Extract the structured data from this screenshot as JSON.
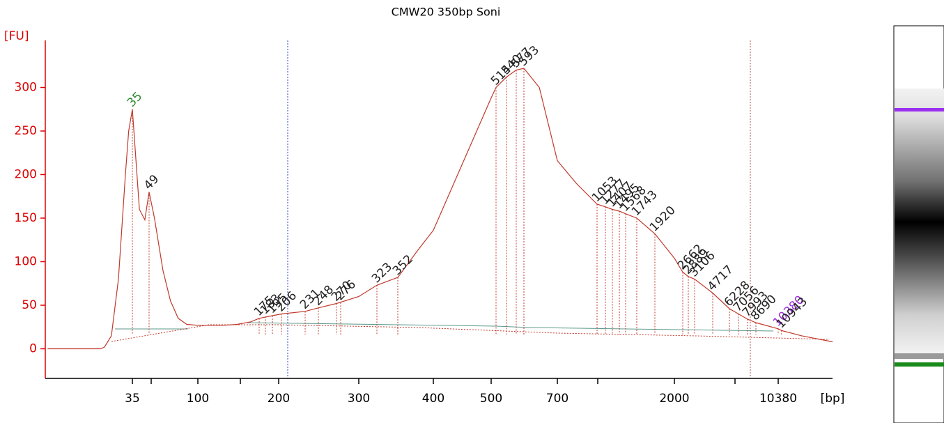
{
  "chart_data": {
    "type": "line",
    "title": "CMW20 350bp Soni",
    "y_label": "[FU]",
    "x_label": "[bp]",
    "color": "#c0392b",
    "xscale": "log",
    "ylim": [
      -34,
      354
    ],
    "yticks": [
      0,
      50,
      100,
      150,
      200,
      250,
      300
    ],
    "xticks": [
      35,
      null,
      100,
      null,
      200,
      300,
      400,
      500,
      700,
      null,
      2000,
      null,
      10380
    ],
    "x": [
      9,
      21,
      22.4,
      25,
      28,
      31.3,
      33,
      35,
      40.3,
      45,
      49,
      53,
      60,
      67,
      75,
      85,
      100,
      111,
      126,
      143,
      162,
      175,
      195,
      206,
      231,
      248,
      270,
      300,
      323,
      352,
      380,
      400,
      500,
      514,
      540,
      577,
      593,
      640,
      700,
      850,
      1053,
      1277,
      1407,
      1495,
      1568,
      1743,
      1920,
      2000,
      2662,
      2889,
      3106,
      4717,
      6228,
      7056,
      7993,
      8690,
      10380,
      10943,
      15000,
      24600
    ],
    "values": [
      0,
      0,
      2,
      15,
      80,
      200,
      250,
      275,
      160,
      148,
      180,
      150,
      90,
      55,
      35,
      28,
      27,
      27,
      27,
      28,
      31,
      35,
      38,
      40,
      43,
      47,
      52,
      60,
      73,
      82,
      115,
      136,
      288,
      300,
      312,
      320,
      322,
      300,
      216,
      190,
      166,
      163,
      160,
      158,
      155,
      150,
      132,
      104,
      88,
      83,
      80,
      64,
      46,
      40,
      34,
      30,
      23,
      21,
      15,
      8
    ],
    "peaks": [
      {
        "size": 35,
        "height": 275,
        "color": "#2e8b2e"
      },
      {
        "size": 49,
        "height": 180,
        "color": "#222222"
      },
      {
        "size": 175,
        "height": 35,
        "color": "#222222"
      },
      {
        "size": 183,
        "height": 37,
        "color": "#222222"
      },
      {
        "size": 195,
        "height": 38,
        "color": "#222222"
      },
      {
        "size": 206,
        "height": 40,
        "color": "#222222"
      },
      {
        "size": 231,
        "height": 43,
        "color": "#222222"
      },
      {
        "size": 248,
        "height": 47,
        "color": "#222222"
      },
      {
        "size": 270,
        "height": 52,
        "color": "#222222"
      },
      {
        "size": 276,
        "height": 53,
        "color": "#222222"
      },
      {
        "size": 323,
        "height": 73,
        "color": "#222222"
      },
      {
        "size": 352,
        "height": 82,
        "color": "#222222"
      },
      {
        "size": 514,
        "height": 300,
        "color": "#222222"
      },
      {
        "size": 540,
        "height": 312,
        "color": "#222222"
      },
      {
        "size": 577,
        "height": 320,
        "color": "#222222"
      },
      {
        "size": 593,
        "height": 322,
        "color": "#222222"
      },
      {
        "size": 1053,
        "height": 166,
        "color": "#222222"
      },
      {
        "size": 1277,
        "height": 163,
        "color": "#222222"
      },
      {
        "size": 1407,
        "height": 160,
        "color": "#222222"
      },
      {
        "size": 1495,
        "height": 158,
        "color": "#222222"
      },
      {
        "size": 1568,
        "height": 155,
        "color": "#222222"
      },
      {
        "size": 1743,
        "height": 150,
        "color": "#222222"
      },
      {
        "size": 1920,
        "height": 132,
        "color": "#222222"
      },
      {
        "size": 2662,
        "height": 88,
        "color": "#222222"
      },
      {
        "size": 2889,
        "height": 83,
        "color": "#222222"
      },
      {
        "size": 3106,
        "height": 80,
        "color": "#222222"
      },
      {
        "size": 4717,
        "height": 64,
        "color": "#222222"
      },
      {
        "size": 6228,
        "height": 46,
        "color": "#222222"
      },
      {
        "size": 7056,
        "height": 40,
        "color": "#222222"
      },
      {
        "size": 7993,
        "height": 34,
        "color": "#222222"
      },
      {
        "size": 8690,
        "height": 30,
        "color": "#222222"
      },
      {
        "size": 10380,
        "height": 23,
        "color": "#9b30d9"
      },
      {
        "size": 10943,
        "height": 21,
        "color": "#222222"
      }
    ]
  }
}
